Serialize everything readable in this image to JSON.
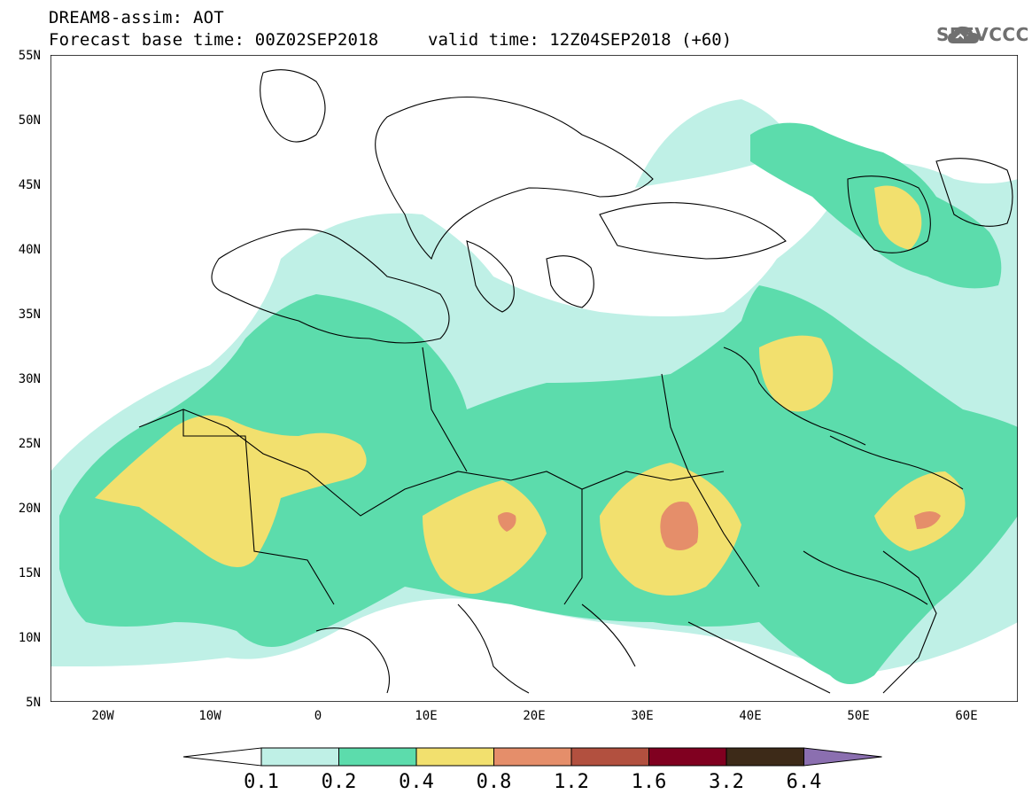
{
  "header": {
    "title_line1": "DREAM8-assim: AOT",
    "base_time": "Forecast base time: 00Z02SEP2018",
    "valid_time": "valid time: 12Z04SEP2018 (+60)"
  },
  "logo": {
    "text": "SEEVCCC",
    "icon": "cloud-icon"
  },
  "map": {
    "lat_labels": [
      "55N",
      "50N",
      "45N",
      "40N",
      "35N",
      "30N",
      "25N",
      "20N",
      "15N",
      "10N",
      "5N"
    ],
    "lon_labels": [
      "20W",
      "10W",
      "0",
      "10E",
      "20E",
      "30E",
      "40E",
      "50E",
      "60E"
    ],
    "lon_range": [
      -25,
      65
    ],
    "lat_range": [
      5,
      55
    ]
  },
  "colorbar": {
    "labels": [
      "0.1",
      "0.2",
      "0.4",
      "0.8",
      "1.2",
      "1.6",
      "3.2",
      "6.4"
    ],
    "colors": [
      "#ffffff",
      "#bff0e6",
      "#5cdcac",
      "#f2e06e",
      "#e58e6a",
      "#b2503f",
      "#800020",
      "#3d2a18",
      "#8b6fb0"
    ]
  }
}
